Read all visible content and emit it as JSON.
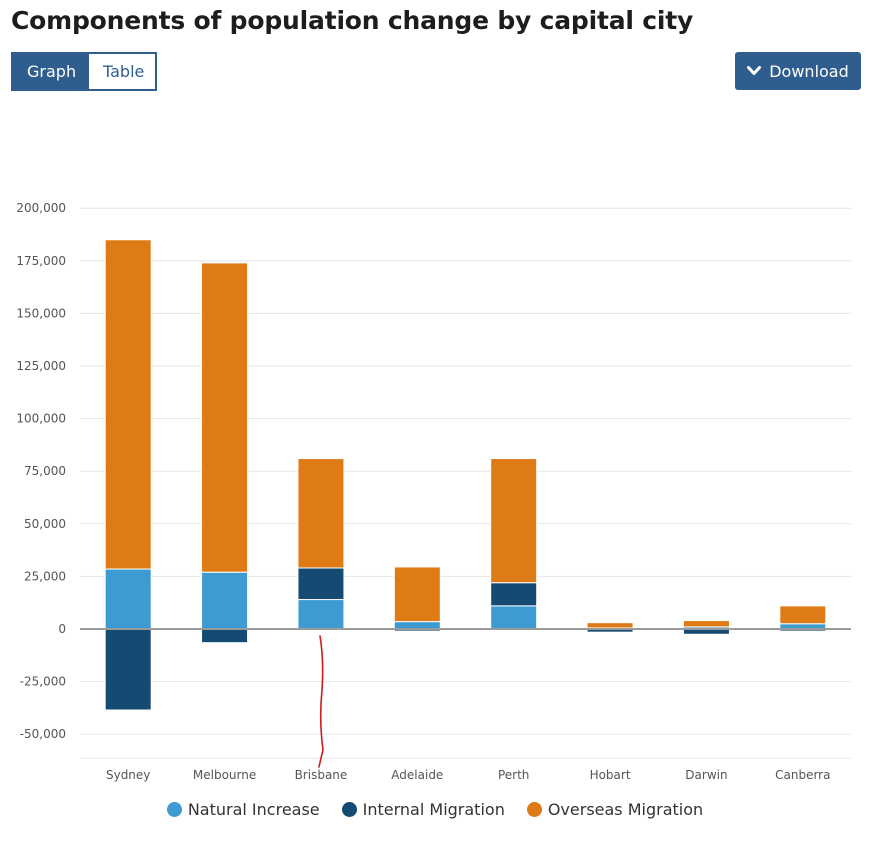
{
  "title": "Components of population change by capital city",
  "toggle": {
    "graph_label": "Graph",
    "table_label": "Table",
    "selected": "Graph"
  },
  "download": {
    "label": "Download",
    "icon": "chevron-down-icon"
  },
  "colors": {
    "natural": "#3d9bd2",
    "internal": "#154a72",
    "overseas": "#df7b16",
    "grid": "#e6e6e6",
    "zero": "#9a9a9a",
    "tick": "#555555"
  },
  "chart_data": {
    "type": "bar",
    "stacked": true,
    "title": "Components of population change by capital city",
    "categories": [
      "Sydney",
      "Melbourne",
      "Brisbane",
      "Adelaide",
      "Perth",
      "Hobart",
      "Darwin",
      "Canberra"
    ],
    "series": [
      {
        "name": "Natural Increase",
        "key": "natural",
        "values": [
          28500,
          27000,
          14000,
          3500,
          11000,
          500,
          1000,
          2500
        ]
      },
      {
        "name": "Internal Migration",
        "key": "internal",
        "values": [
          -38500,
          -6500,
          15000,
          -1000,
          11000,
          -1500,
          -2500,
          -1000
        ]
      },
      {
        "name": "Overseas Migration",
        "key": "overseas",
        "values": [
          156500,
          147000,
          52000,
          26000,
          59000,
          2500,
          3000,
          8500
        ]
      }
    ],
    "ylim": [
      -60000,
      210000
    ],
    "yticks": [
      -50000,
      -25000,
      0,
      25000,
      50000,
      75000,
      100000,
      125000,
      150000,
      175000,
      200000
    ],
    "ytick_labels": [
      "-50,000",
      "-25,000",
      "0",
      "25,000",
      "50,000",
      "75,000",
      "100,000",
      "125,000",
      "150,000",
      "175,000",
      "200,000"
    ],
    "xlabel": "",
    "ylabel": "",
    "legend_position": "bottom-center",
    "grid": true
  },
  "legend": [
    {
      "label": "Natural Increase",
      "color_key": "natural"
    },
    {
      "label": "Internal Migration",
      "color_key": "internal"
    },
    {
      "label": "Overseas Migration",
      "color_key": "overseas"
    }
  ]
}
